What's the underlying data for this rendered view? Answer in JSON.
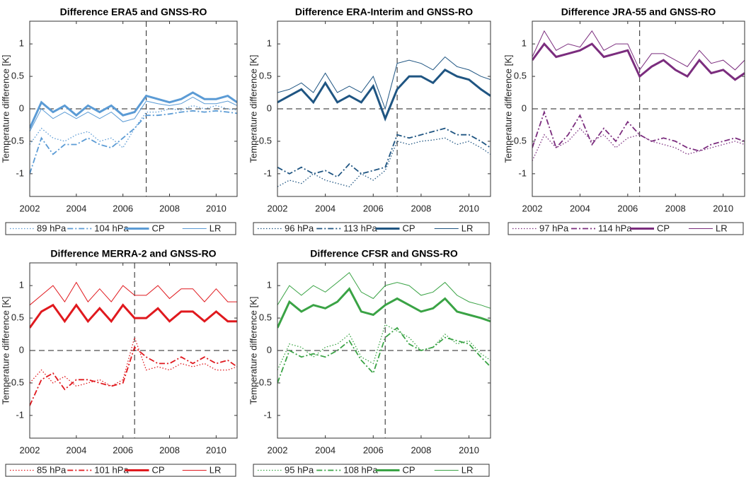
{
  "chart_data": [
    {
      "type": "line",
      "title": "Difference ERA5 and GNSS-RO",
      "y_label": "Temperature difference [K]",
      "x": [
        2002,
        2002.5,
        2003,
        2003.5,
        2004,
        2004.5,
        2005,
        2005.5,
        2006,
        2006.5,
        2007,
        2007.5,
        2008,
        2008.5,
        2009,
        2009.5,
        2010,
        2010.5,
        2010.9
      ],
      "xlim": [
        2002,
        2010.9
      ],
      "xticks": [
        2002,
        2004,
        2006,
        2008,
        2010
      ],
      "ylim": [
        -1.35,
        1.35
      ],
      "yticks": [
        -1,
        -0.5,
        0,
        0.5,
        1
      ],
      "vline": 2007,
      "hline": 0,
      "legend": "bottom",
      "series": [
        {
          "name": "89 hPa",
          "color": "#5b9bd5",
          "style": "dotted",
          "values": [
            -0.55,
            -0.3,
            -0.45,
            -0.5,
            -0.4,
            -0.35,
            -0.5,
            -0.45,
            -0.6,
            -0.3,
            -0.05,
            -0.05,
            0,
            -0.02,
            0.05,
            0,
            0.05,
            0,
            -0.02
          ]
        },
        {
          "name": "104 hPa",
          "color": "#5b9bd5",
          "style": "dashdot",
          "values": [
            -1.0,
            -0.45,
            -0.7,
            -0.55,
            -0.55,
            -0.45,
            -0.55,
            -0.6,
            -0.45,
            -0.3,
            -0.1,
            -0.1,
            -0.08,
            -0.05,
            -0.03,
            -0.05,
            -0.03,
            -0.05,
            -0.07
          ]
        },
        {
          "name": "CP",
          "color": "#5b9bd5",
          "style": "thick",
          "values": [
            -0.3,
            0.1,
            -0.05,
            0.05,
            -0.1,
            0.05,
            -0.05,
            0.05,
            -0.1,
            -0.05,
            0.2,
            0.15,
            0.1,
            0.15,
            0.25,
            0.15,
            0.15,
            0.2,
            0.1
          ]
        },
        {
          "name": "LR",
          "color": "#5b9bd5",
          "style": "thin",
          "values": [
            -0.35,
            0,
            -0.15,
            -0.05,
            -0.15,
            -0.05,
            -0.15,
            -0.05,
            -0.2,
            -0.15,
            0.12,
            0.08,
            0.05,
            0.08,
            0.18,
            0.08,
            0.08,
            0.12,
            0.05
          ]
        }
      ]
    },
    {
      "type": "line",
      "title": "Difference ERA-Interim and GNSS-RO",
      "y_label": "Temperature difference [K]",
      "x": [
        2002,
        2002.5,
        2003,
        2003.5,
        2004,
        2004.5,
        2005,
        2005.5,
        2006,
        2006.5,
        2007,
        2007.5,
        2008,
        2008.5,
        2009,
        2009.5,
        2010,
        2010.5,
        2010.9
      ],
      "xlim": [
        2002,
        2010.9
      ],
      "xticks": [
        2002,
        2004,
        2006,
        2008,
        2010
      ],
      "ylim": [
        -1.35,
        1.35
      ],
      "yticks": [
        -1,
        -0.5,
        0,
        0.5,
        1
      ],
      "vline": 2007,
      "hline": 0,
      "legend": "bottom",
      "series": [
        {
          "name": "96 hPa",
          "color": "#1f5582",
          "style": "dotted",
          "values": [
            -1.2,
            -1.1,
            -1.15,
            -1.0,
            -1.1,
            -1.15,
            -1.2,
            -1.0,
            -1.1,
            -0.95,
            -0.5,
            -0.55,
            -0.5,
            -0.48,
            -0.45,
            -0.55,
            -0.5,
            -0.6,
            -0.7
          ]
        },
        {
          "name": "113 hPa",
          "color": "#1f5582",
          "style": "dashdot",
          "values": [
            -0.9,
            -1.0,
            -0.9,
            -1.0,
            -0.95,
            -1.05,
            -0.85,
            -1.0,
            -0.95,
            -0.9,
            -0.4,
            -0.45,
            -0.4,
            -0.35,
            -0.3,
            -0.4,
            -0.4,
            -0.5,
            -0.6
          ]
        },
        {
          "name": "CP",
          "color": "#1f5582",
          "style": "thick",
          "values": [
            0.1,
            0.2,
            0.3,
            0.1,
            0.4,
            0.1,
            0.2,
            0.1,
            0.35,
            -0.15,
            0.3,
            0.5,
            0.5,
            0.4,
            0.6,
            0.5,
            0.45,
            0.3,
            0.2
          ]
        },
        {
          "name": "LR",
          "color": "#1f5582",
          "style": "thin",
          "values": [
            0.25,
            0.3,
            0.4,
            0.25,
            0.55,
            0.25,
            0.35,
            0.25,
            0.5,
            0,
            0.7,
            0.75,
            0.7,
            0.6,
            0.8,
            0.65,
            0.6,
            0.5,
            0.45
          ]
        }
      ]
    },
    {
      "type": "line",
      "title": "Difference JRA-55 and GNSS-RO",
      "y_label": "Temperature difference [K]",
      "x": [
        2002,
        2002.5,
        2003,
        2003.5,
        2004,
        2004.5,
        2005,
        2005.5,
        2006,
        2006.5,
        2007,
        2007.5,
        2008,
        2008.5,
        2009,
        2009.5,
        2010,
        2010.5,
        2010.9
      ],
      "xlim": [
        2002,
        2010.9
      ],
      "xticks": [
        2002,
        2004,
        2006,
        2008,
        2010
      ],
      "ylim": [
        -1.35,
        1.35
      ],
      "yticks": [
        -1,
        -0.5,
        0,
        0.5,
        1
      ],
      "vline": 2006.5,
      "hline": 0,
      "legend": "bottom",
      "series": [
        {
          "name": "97 hPa",
          "color": "#7b2d7e",
          "style": "dotted",
          "values": [
            -0.8,
            -0.4,
            -0.6,
            -0.5,
            -0.3,
            -0.5,
            -0.4,
            -0.6,
            -0.45,
            -0.4,
            -0.5,
            -0.55,
            -0.6,
            -0.7,
            -0.65,
            -0.6,
            -0.55,
            -0.5,
            -0.55
          ]
        },
        {
          "name": "114 hPa",
          "color": "#7b2d7e",
          "style": "dashdot",
          "values": [
            -0.6,
            -0.05,
            -0.6,
            -0.4,
            -0.1,
            -0.55,
            -0.3,
            -0.5,
            -0.2,
            -0.4,
            -0.5,
            -0.45,
            -0.5,
            -0.6,
            -0.65,
            -0.55,
            -0.5,
            -0.45,
            -0.5
          ]
        },
        {
          "name": "CP",
          "color": "#7b2d7e",
          "style": "thick",
          "values": [
            0.75,
            1.0,
            0.8,
            0.85,
            0.9,
            1.0,
            0.8,
            0.85,
            0.9,
            0.5,
            0.65,
            0.75,
            0.6,
            0.5,
            0.75,
            0.55,
            0.6,
            0.45,
            0.55
          ]
        },
        {
          "name": "LR",
          "color": "#7b2d7e",
          "style": "thin",
          "values": [
            0.8,
            1.2,
            0.9,
            1.0,
            0.95,
            1.2,
            0.9,
            1.0,
            1.0,
            0.6,
            0.85,
            0.85,
            0.75,
            0.65,
            0.9,
            0.7,
            0.75,
            0.6,
            0.75
          ]
        }
      ]
    },
    {
      "type": "line",
      "title": "Difference MERRA-2 and GNSS-RO",
      "y_label": "Temperature difference [K]",
      "x": [
        2002,
        2002.5,
        2003,
        2003.5,
        2004,
        2004.5,
        2005,
        2005.5,
        2006,
        2006.5,
        2007,
        2007.5,
        2008,
        2008.5,
        2009,
        2009.5,
        2010,
        2010.5,
        2010.9
      ],
      "xlim": [
        2002,
        2010.9
      ],
      "xticks": [
        2002,
        2004,
        2006,
        2008,
        2010
      ],
      "ylim": [
        -1.35,
        1.35
      ],
      "yticks": [
        -1,
        -0.5,
        0,
        0.5,
        1
      ],
      "vline": 2006.5,
      "hline": 0,
      "legend": "bottom",
      "series": [
        {
          "name": "85 hPa",
          "color": "#e0191e",
          "style": "dotted",
          "values": [
            -0.5,
            -0.3,
            -0.5,
            -0.4,
            -0.55,
            -0.5,
            -0.45,
            -0.55,
            -0.45,
            0.2,
            -0.3,
            -0.25,
            -0.3,
            -0.2,
            -0.25,
            -0.2,
            -0.3,
            -0.3,
            -0.25
          ]
        },
        {
          "name": "101 hPa",
          "color": "#e0191e",
          "style": "dashdot",
          "values": [
            -0.85,
            -0.45,
            -0.35,
            -0.6,
            -0.45,
            -0.45,
            -0.5,
            -0.55,
            -0.5,
            0.05,
            -0.1,
            -0.2,
            -0.2,
            -0.1,
            -0.2,
            -0.1,
            -0.2,
            -0.15,
            -0.25
          ]
        },
        {
          "name": "CP",
          "color": "#e0191e",
          "style": "thick",
          "values": [
            0.35,
            0.6,
            0.7,
            0.45,
            0.7,
            0.45,
            0.65,
            0.45,
            0.7,
            0.5,
            0.5,
            0.65,
            0.45,
            0.6,
            0.6,
            0.45,
            0.6,
            0.45,
            0.45
          ]
        },
        {
          "name": "LR",
          "color": "#e0191e",
          "style": "thin",
          "values": [
            0.7,
            0.85,
            1.0,
            0.75,
            1.05,
            0.75,
            0.95,
            0.75,
            1.0,
            0.85,
            0.85,
            1.0,
            0.8,
            0.95,
            0.95,
            0.75,
            0.95,
            0.75,
            0.75
          ]
        }
      ]
    },
    {
      "type": "line",
      "title": "Difference CFSR and GNSS-RO",
      "y_label": "Temperature difference [K]",
      "x": [
        2002,
        2002.5,
        2003,
        2003.5,
        2004,
        2004.5,
        2005,
        2005.5,
        2006,
        2006.5,
        2007,
        2007.5,
        2008,
        2008.5,
        2009,
        2009.5,
        2010,
        2010.5,
        2010.9
      ],
      "xlim": [
        2002,
        2010.9
      ],
      "xticks": [
        2002,
        2004,
        2006,
        2008,
        2010
      ],
      "ylim": [
        -1.35,
        1.35
      ],
      "yticks": [
        -1,
        -0.5,
        0,
        0.5,
        1
      ],
      "vline": 2006.5,
      "hline": 0,
      "legend": "bottom",
      "series": [
        {
          "name": "95 hPa",
          "color": "#3aa345",
          "style": "dotted",
          "values": [
            -0.3,
            0.1,
            0.05,
            -0.1,
            0.05,
            0.1,
            0.25,
            -0.1,
            -0.2,
            0.4,
            0.3,
            0.2,
            0,
            0.05,
            0.25,
            0.1,
            0.15,
            -0.05,
            -0.15
          ]
        },
        {
          "name": "108 hPa",
          "color": "#3aa345",
          "style": "dashdot",
          "values": [
            -0.5,
            0,
            -0.1,
            -0.05,
            -0.1,
            0,
            0.15,
            -0.15,
            -0.35,
            0.2,
            0.35,
            0.1,
            0,
            0.05,
            0.2,
            0.15,
            0.1,
            -0.1,
            -0.25
          ]
        },
        {
          "name": "CP",
          "color": "#3aa345",
          "style": "thick",
          "values": [
            0.35,
            0.75,
            0.6,
            0.7,
            0.65,
            0.75,
            0.95,
            0.6,
            0.55,
            0.7,
            0.8,
            0.7,
            0.6,
            0.65,
            0.8,
            0.6,
            0.55,
            0.5,
            0.45
          ]
        },
        {
          "name": "LR",
          "color": "#3aa345",
          "style": "thin",
          "values": [
            0.7,
            1.0,
            0.85,
            1.0,
            0.9,
            1.05,
            1.2,
            0.9,
            0.8,
            1.0,
            1.05,
            1.0,
            0.85,
            0.9,
            1.05,
            0.85,
            0.75,
            0.7,
            0.65
          ]
        }
      ]
    }
  ]
}
